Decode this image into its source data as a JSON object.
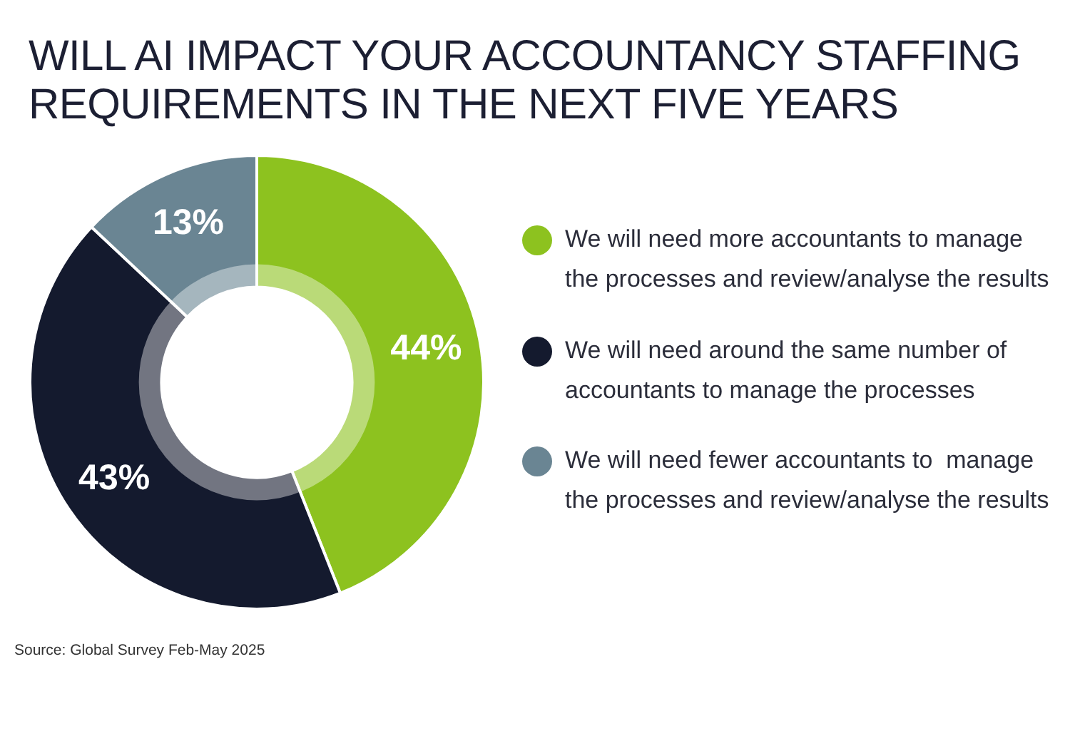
{
  "chart_data": {
    "type": "donut",
    "title": "WILL AI IMPACT YOUR ACCOUNTANCY STAFFING REQUIREMENTS IN THE NEXT FIVE YEARS",
    "categories": [
      "We will need more accountants to manage the processes and review/analyse the results",
      "We will need around the same number of accountants to manage the processes",
      "We will need fewer accountants to  manage the processes and review/analyse the results"
    ],
    "values": [
      44,
      43,
      13
    ],
    "colors": [
      "#8dc21f",
      "#141a2e",
      "#6a8593"
    ],
    "value_labels": [
      "44%",
      "43%",
      "13%"
    ],
    "legend": "right",
    "annotations": [
      "Source: Global Survey Feb-May 2025"
    ]
  }
}
